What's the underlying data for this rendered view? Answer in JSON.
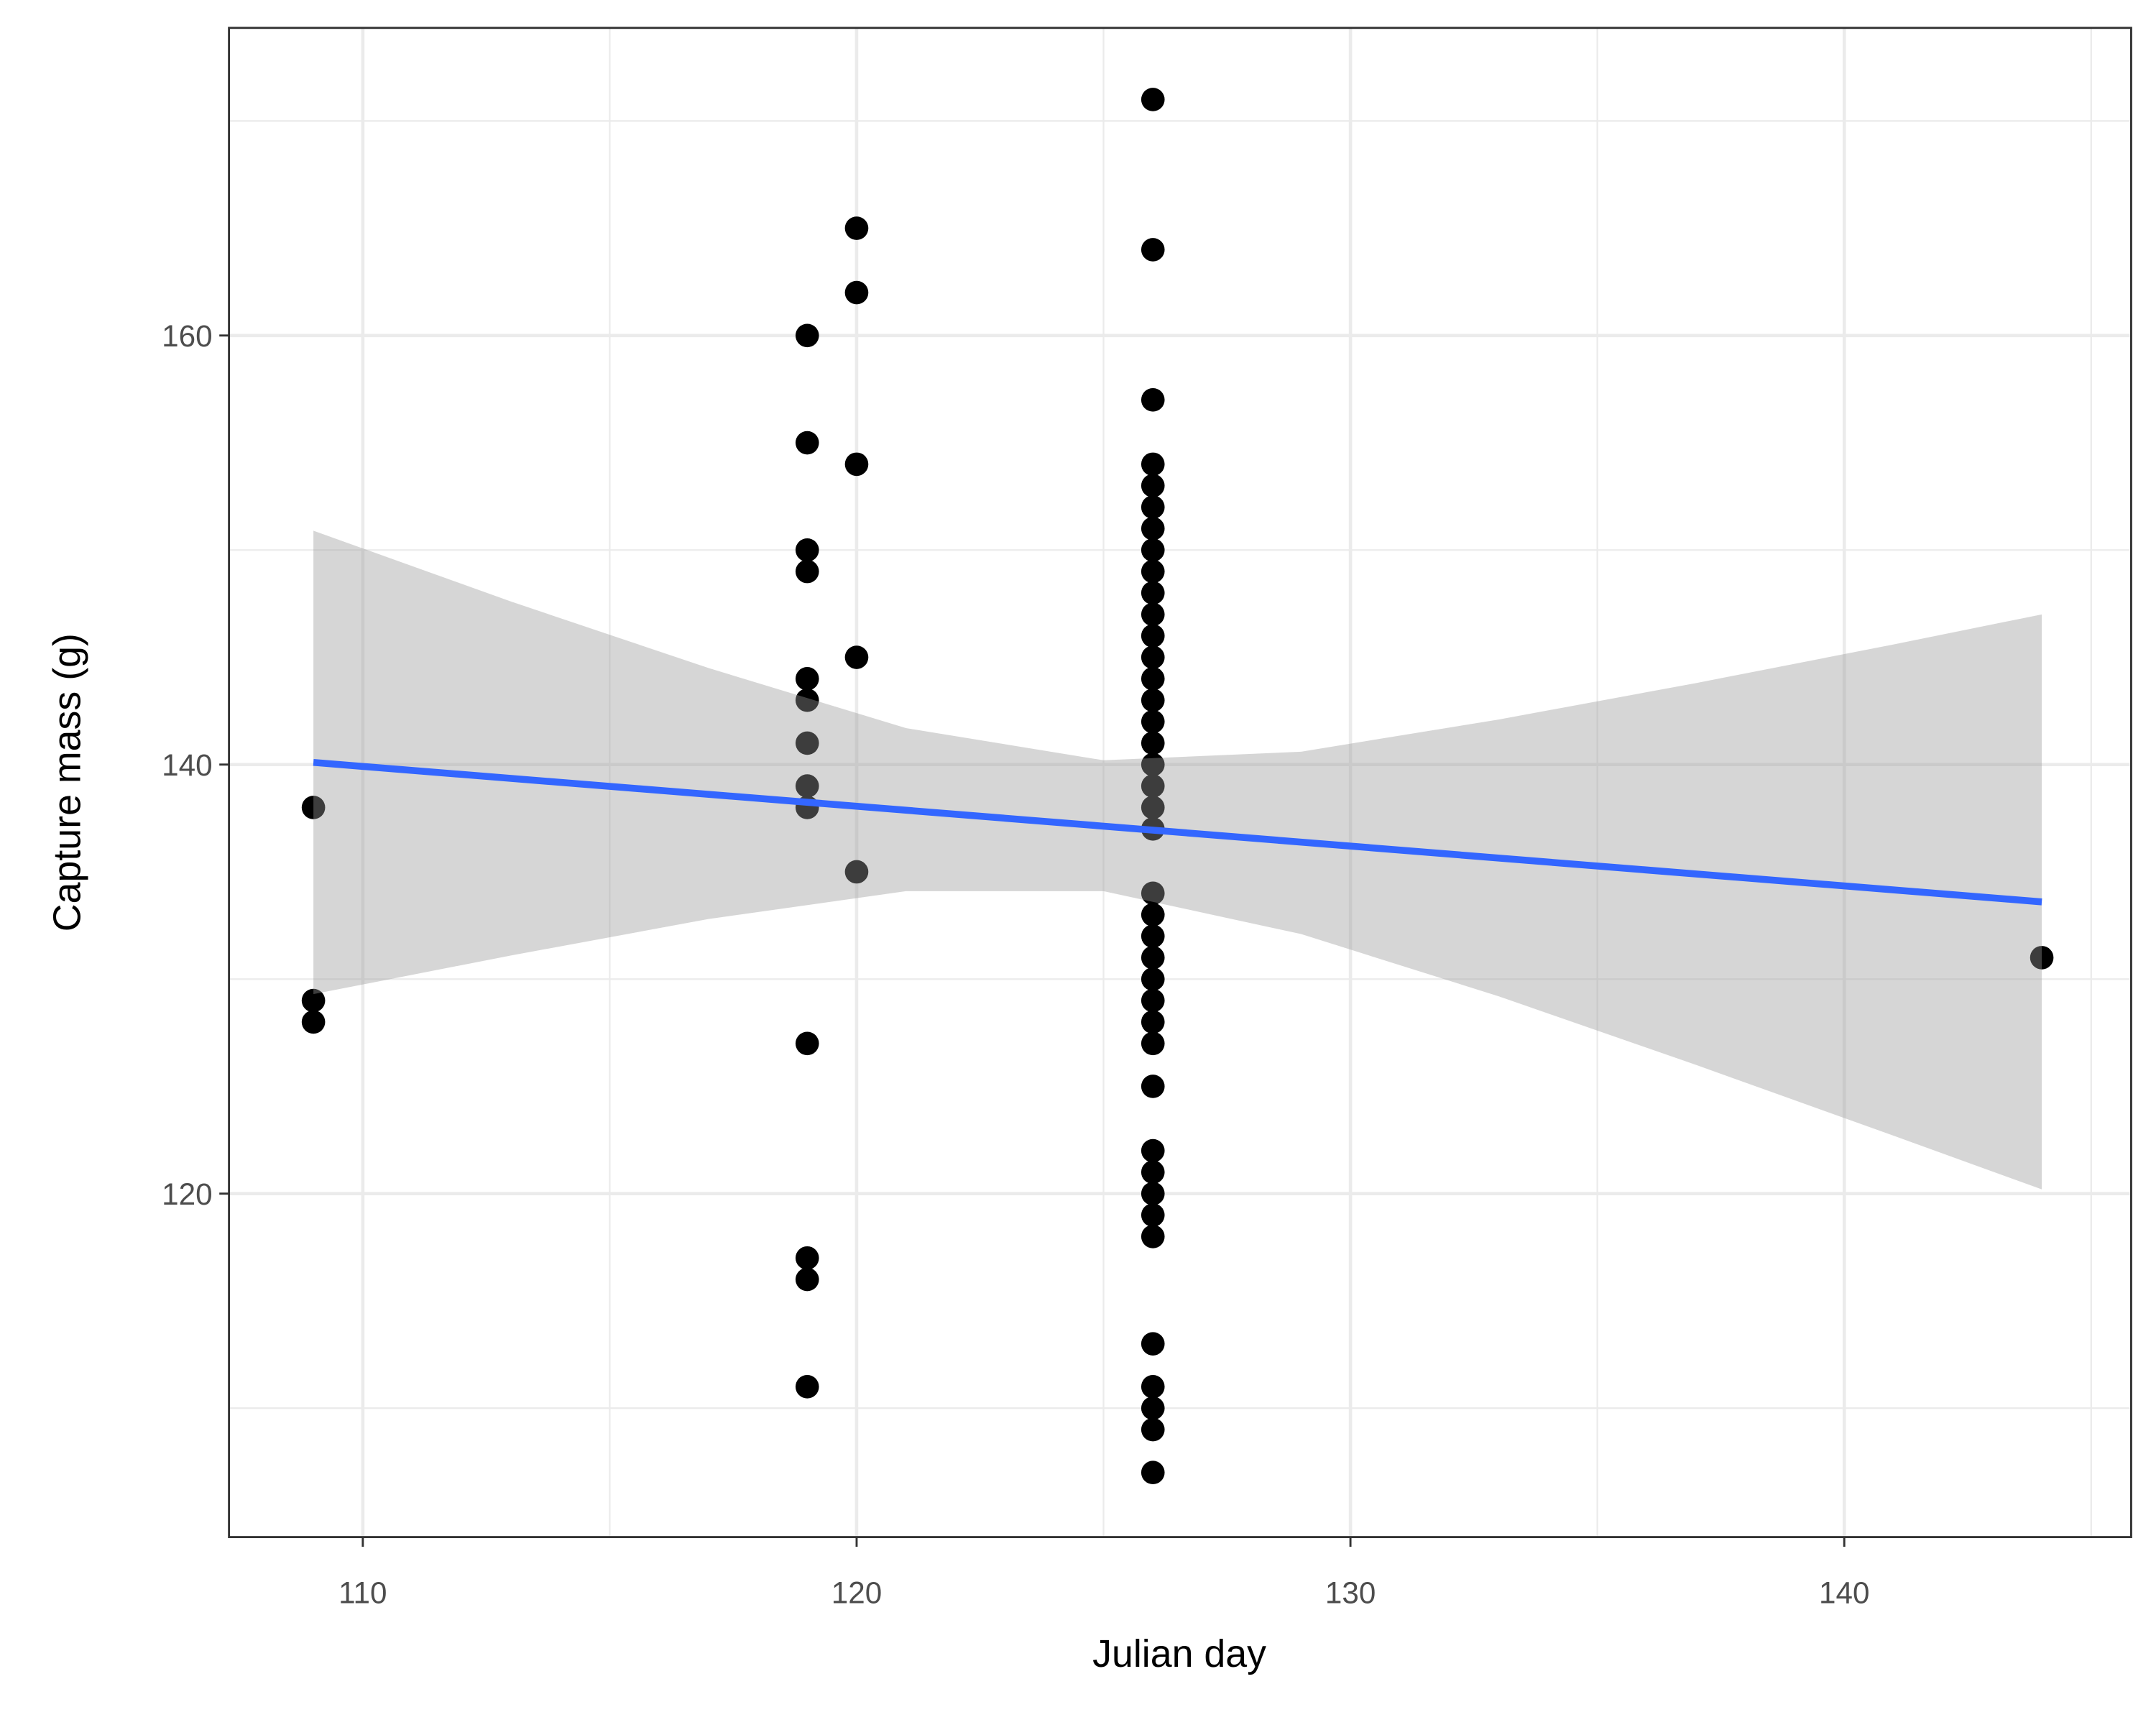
{
  "chart_data": {
    "type": "scatter",
    "xlabel": "Julian day",
    "ylabel": "Capture mass (g)",
    "xlim": [
      107.29,
      145.81
    ],
    "ylim": [
      103.99,
      174.34
    ],
    "xticks": [
      110,
      120,
      130,
      140
    ],
    "yticks": [
      120,
      140,
      160
    ],
    "x_minor_grid": [
      105,
      115,
      125,
      135,
      145
    ],
    "y_minor_grid": [
      110,
      130,
      150,
      170
    ],
    "grid": true,
    "points": {
      "color": "#000000",
      "x": [
        109,
        109,
        109,
        119,
        119,
        119,
        119,
        119,
        119,
        119,
        119,
        119,
        119,
        119,
        119,
        119,
        120,
        120,
        120,
        120,
        120,
        126,
        126,
        126,
        126,
        126,
        126,
        126,
        126,
        126,
        126,
        126,
        126,
        126,
        126,
        126,
        126,
        126,
        126,
        126,
        126,
        126,
        126,
        126,
        126,
        126,
        126,
        126,
        126,
        126,
        126,
        126,
        126,
        126,
        126,
        126,
        126,
        126,
        126,
        126,
        126,
        144
      ],
      "values": [
        138,
        129,
        128,
        160,
        155,
        150,
        149,
        144,
        143,
        141,
        139,
        138,
        127,
        117,
        116,
        111,
        165,
        162,
        154,
        145,
        135,
        171,
        164,
        157,
        154,
        153,
        152,
        151,
        150,
        149,
        148,
        147,
        146,
        145,
        144,
        143,
        142,
        141,
        140,
        139,
        138,
        137,
        134,
        133,
        132,
        131,
        130,
        129,
        128,
        127,
        125,
        122,
        121,
        120,
        119,
        118,
        113,
        111,
        110,
        109,
        107,
        131
      ]
    },
    "trend": {
      "color": "#3366ff",
      "x": [
        109,
        144
      ],
      "values": [
        140.1,
        133.6
      ]
    },
    "ribbon": {
      "color": "#999999",
      "x": [
        109,
        113,
        117,
        121,
        125,
        129,
        133,
        137,
        141,
        144
      ],
      "upper": [
        150.9,
        147.6,
        144.5,
        141.7,
        140.2,
        140.6,
        142.1,
        143.8,
        145.6,
        147.0
      ],
      "lower": [
        129.3,
        131.1,
        132.8,
        134.1,
        134.1,
        132.1,
        129.2,
        126.0,
        122.7,
        120.2
      ]
    }
  }
}
